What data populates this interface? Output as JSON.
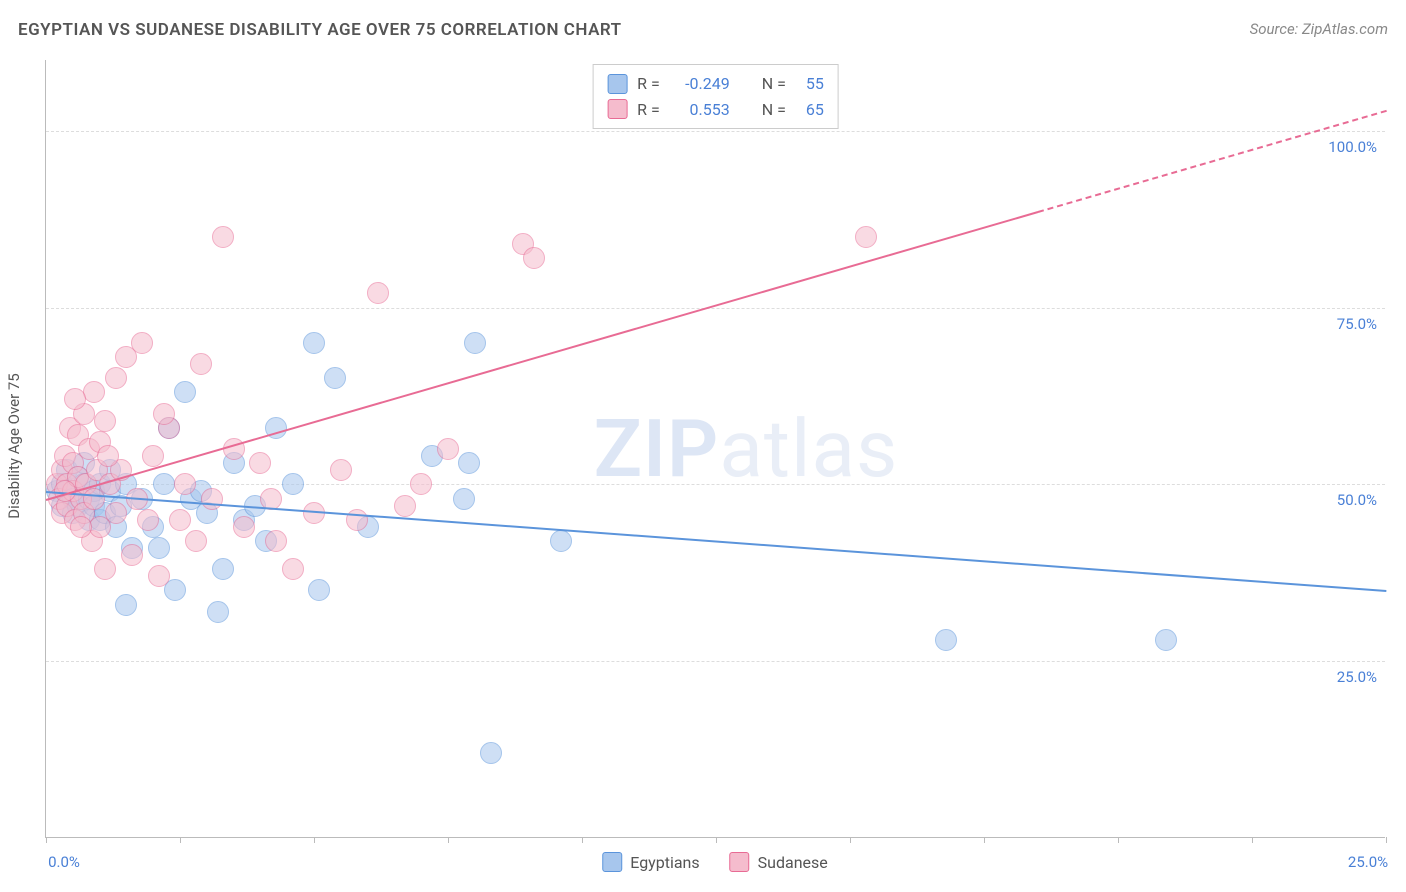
{
  "title": "EGYPTIAN VS SUDANESE DISABILITY AGE OVER 75 CORRELATION CHART",
  "source": "Source: ZipAtlas.com",
  "ylabel": "Disability Age Over 75",
  "watermark_a": "ZIP",
  "watermark_b": "atlas",
  "chart": {
    "type": "scatter",
    "background_color": "#ffffff",
    "grid_color": "#dddddd",
    "axis_color": "#bbbbbb",
    "label_color": "#4a80d6",
    "text_color": "#555555",
    "xlim": [
      0,
      25
    ],
    "ylim": [
      0,
      110
    ],
    "xticks": [
      0,
      2.5,
      5,
      7.5,
      10,
      12.5,
      15,
      17.5,
      20,
      22.5,
      25
    ],
    "xtick_labels": {
      "0": "0.0%",
      "25": "25.0%"
    },
    "yticks": [
      25,
      50,
      75,
      100
    ],
    "ytick_labels": {
      "25": "25.0%",
      "50": "50.0%",
      "75": "75.0%",
      "100": "100.0%"
    },
    "marker_radius": 10,
    "marker_opacity": 0.55,
    "series": [
      {
        "name": "Egyptians",
        "fill": "#a7c6ed",
        "stroke": "#5b94db",
        "points": [
          [
            0.2,
            49
          ],
          [
            0.3,
            50
          ],
          [
            0.3,
            47
          ],
          [
            0.4,
            52
          ],
          [
            0.4,
            49
          ],
          [
            0.5,
            48
          ],
          [
            0.5,
            46
          ],
          [
            0.6,
            51
          ],
          [
            0.6,
            47
          ],
          [
            0.7,
            50
          ],
          [
            0.7,
            53
          ],
          [
            0.8,
            48
          ],
          [
            0.8,
            45
          ],
          [
            0.9,
            49
          ],
          [
            0.9,
            47
          ],
          [
            1.0,
            45
          ],
          [
            1.0,
            50
          ],
          [
            1.1,
            46
          ],
          [
            1.2,
            49
          ],
          [
            1.2,
            52
          ],
          [
            1.3,
            44
          ],
          [
            1.4,
            47
          ],
          [
            1.5,
            50
          ],
          [
            1.5,
            33
          ],
          [
            1.6,
            41
          ],
          [
            1.8,
            48
          ],
          [
            2.0,
            44
          ],
          [
            2.1,
            41
          ],
          [
            2.2,
            50
          ],
          [
            2.3,
            58
          ],
          [
            2.4,
            35
          ],
          [
            2.6,
            63
          ],
          [
            2.7,
            48
          ],
          [
            2.9,
            49
          ],
          [
            3.0,
            46
          ],
          [
            3.2,
            32
          ],
          [
            3.3,
            38
          ],
          [
            3.5,
            53
          ],
          [
            3.7,
            45
          ],
          [
            3.9,
            47
          ],
          [
            4.1,
            42
          ],
          [
            4.3,
            58
          ],
          [
            4.6,
            50
          ],
          [
            5.0,
            70
          ],
          [
            5.1,
            35
          ],
          [
            5.4,
            65
          ],
          [
            6.0,
            44
          ],
          [
            7.2,
            54
          ],
          [
            7.8,
            48
          ],
          [
            8.0,
            70
          ],
          [
            8.3,
            12
          ],
          [
            9.6,
            42
          ],
          [
            16.8,
            28
          ],
          [
            20.9,
            28
          ],
          [
            7.9,
            53
          ]
        ],
        "trend": {
          "y_at_x0": 49,
          "y_at_xmax": 35,
          "dash_from_x": null
        }
      },
      {
        "name": "Sudanese",
        "fill": "#f5bccd",
        "stroke": "#e86b94",
        "points": [
          [
            0.2,
            50
          ],
          [
            0.25,
            48
          ],
          [
            0.3,
            52
          ],
          [
            0.3,
            46
          ],
          [
            0.35,
            54
          ],
          [
            0.4,
            50
          ],
          [
            0.4,
            47
          ],
          [
            0.45,
            58
          ],
          [
            0.5,
            49
          ],
          [
            0.5,
            53
          ],
          [
            0.55,
            45
          ],
          [
            0.6,
            57
          ],
          [
            0.6,
            51
          ],
          [
            0.65,
            48
          ],
          [
            0.7,
            60
          ],
          [
            0.7,
            46
          ],
          [
            0.75,
            50
          ],
          [
            0.8,
            55
          ],
          [
            0.85,
            42
          ],
          [
            0.9,
            63
          ],
          [
            0.9,
            48
          ],
          [
            0.95,
            52
          ],
          [
            1.0,
            56
          ],
          [
            1.0,
            44
          ],
          [
            1.1,
            59
          ],
          [
            1.1,
            38
          ],
          [
            1.2,
            50
          ],
          [
            1.3,
            65
          ],
          [
            1.3,
            46
          ],
          [
            1.4,
            52
          ],
          [
            1.5,
            68
          ],
          [
            1.6,
            40
          ],
          [
            1.7,
            48
          ],
          [
            1.8,
            70
          ],
          [
            1.9,
            45
          ],
          [
            2.0,
            54
          ],
          [
            2.1,
            37
          ],
          [
            2.3,
            58
          ],
          [
            2.5,
            45
          ],
          [
            2.6,
            50
          ],
          [
            2.8,
            42
          ],
          [
            2.9,
            67
          ],
          [
            3.1,
            48
          ],
          [
            3.3,
            85
          ],
          [
            3.5,
            55
          ],
          [
            3.7,
            44
          ],
          [
            4.0,
            53
          ],
          [
            4.2,
            48
          ],
          [
            4.3,
            42
          ],
          [
            4.6,
            38
          ],
          [
            5.0,
            46
          ],
          [
            5.5,
            52
          ],
          [
            5.8,
            45
          ],
          [
            6.2,
            77
          ],
          [
            6.7,
            47
          ],
          [
            7.0,
            50
          ],
          [
            7.5,
            55
          ],
          [
            8.9,
            84
          ],
          [
            9.1,
            82
          ],
          [
            2.2,
            60
          ],
          [
            1.15,
            54
          ],
          [
            0.55,
            62
          ],
          [
            15.3,
            85
          ],
          [
            0.35,
            49
          ],
          [
            0.65,
            44
          ]
        ],
        "trend": {
          "y_at_x0": 48,
          "y_at_xmax": 103,
          "dash_from_x": 18.5
        }
      }
    ],
    "legend_top": [
      {
        "swatch_fill": "#a7c6ed",
        "swatch_stroke": "#5b94db",
        "r_label": "R =",
        "r_val": "-0.249",
        "n_label": "N =",
        "n_val": "55"
      },
      {
        "swatch_fill": "#f5bccd",
        "swatch_stroke": "#e86b94",
        "r_label": "R =",
        "r_val": "0.553",
        "n_label": "N =",
        "n_val": "65"
      }
    ],
    "legend_bottom": [
      {
        "swatch_fill": "#a7c6ed",
        "swatch_stroke": "#5b94db",
        "label": "Egyptians"
      },
      {
        "swatch_fill": "#f5bccd",
        "swatch_stroke": "#e86b94",
        "label": "Sudanese"
      }
    ]
  }
}
